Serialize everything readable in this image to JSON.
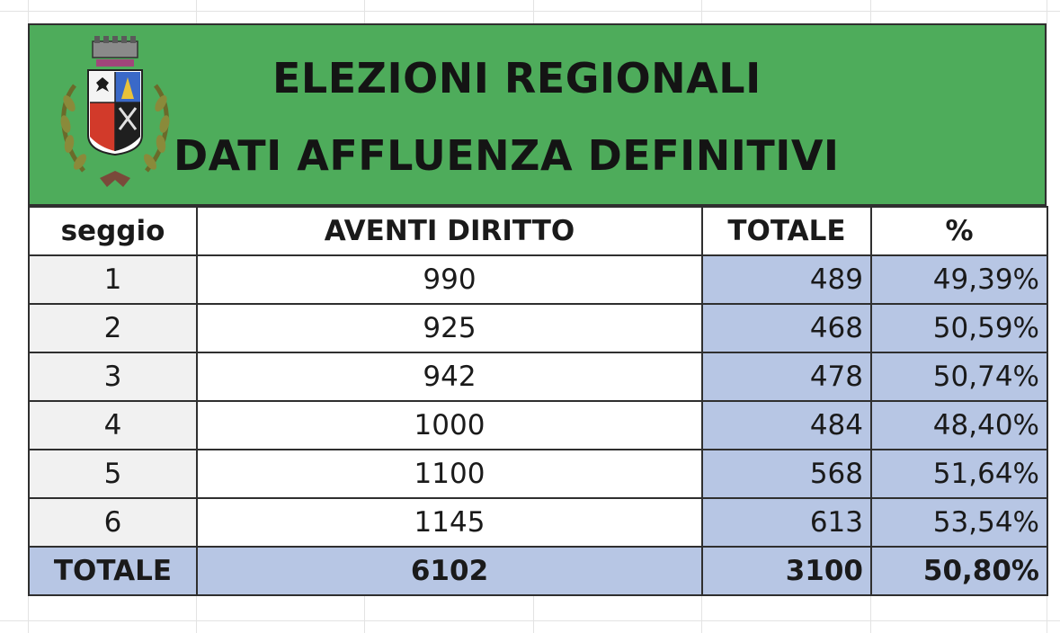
{
  "banner": {
    "title_line1": "ELEZIONI REGIONALI",
    "title_line2": "DATI AFFLUENZA DEFINITIVI",
    "background_color": "#4eac5b",
    "crest_icon": "municipal-coat-of-arms-icon"
  },
  "table": {
    "headers": {
      "seggio": "seggio",
      "aventi": "AVENTI DIRITTO",
      "totale": "TOTALE",
      "pct": "%"
    },
    "rows": [
      {
        "seggio": "1",
        "aventi": "990",
        "totale": "489",
        "pct": "49,39%"
      },
      {
        "seggio": "2",
        "aventi": "925",
        "totale": "468",
        "pct": "50,59%"
      },
      {
        "seggio": "3",
        "aventi": "942",
        "totale": "478",
        "pct": "50,74%"
      },
      {
        "seggio": "4",
        "aventi": "1000",
        "totale": "484",
        "pct": "48,40%"
      },
      {
        "seggio": "5",
        "aventi": "1100",
        "totale": "568",
        "pct": "51,64%"
      },
      {
        "seggio": "6",
        "aventi": "1145",
        "totale": "613",
        "pct": "53,54%"
      }
    ],
    "total": {
      "label": "TOTALE",
      "aventi": "6102",
      "totale": "3100",
      "pct": "50,80%"
    },
    "highlight_color": "#b7c6e4"
  }
}
